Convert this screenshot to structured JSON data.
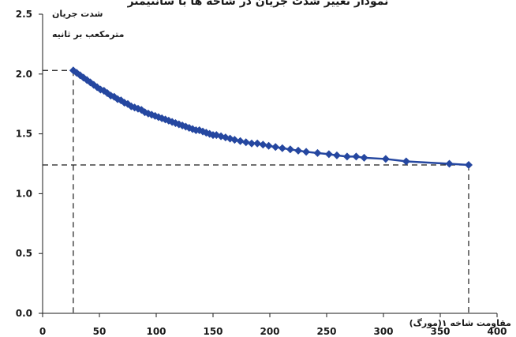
{
  "top_caption_fragment": "نمودار تغییر شدت جریان در شاخه ها با سانتیمتر",
  "chart_data": {
    "type": "line",
    "ylabel": "شدت جریان",
    "ylabel_unit": "مترمکعب بر ثانیه",
    "xlabel": "مقاومت شاخه ۱(مورگ)",
    "xlim": [
      0,
      400
    ],
    "ylim": [
      0,
      2.5
    ],
    "x_ticks": [
      "0",
      "50",
      "100",
      "150",
      "200",
      "250",
      "300",
      "350",
      "400"
    ],
    "y_ticks": [
      "0.0",
      "0.5",
      "1.0",
      "1.5",
      "2.0",
      "2.5"
    ],
    "x_tick_values": [
      0,
      50,
      100,
      150,
      200,
      250,
      300,
      350,
      400
    ],
    "y_tick_values": [
      0,
      0.5,
      1.0,
      1.5,
      2.0,
      2.5
    ],
    "grid": false,
    "marker": "diamond",
    "color": "#2547a0",
    "reference_lines": [
      {
        "x": 27,
        "y": 2.03
      },
      {
        "x": 375,
        "y": 1.24
      }
    ],
    "series": [
      {
        "x": [
          27,
          30,
          33,
          36,
          39,
          42,
          45,
          48,
          51,
          54,
          57,
          60,
          63,
          66,
          69,
          72,
          75,
          78,
          81,
          84,
          87,
          90,
          93,
          96,
          99,
          102,
          105,
          108,
          111,
          114,
          117,
          120,
          123,
          126,
          129,
          132,
          135,
          138,
          141,
          144,
          147,
          150,
          153,
          157,
          161,
          165,
          169,
          174,
          179,
          184,
          189,
          194,
          199,
          205,
          211,
          218,
          225,
          232,
          242,
          252,
          259,
          268,
          276,
          283,
          302,
          320,
          358,
          375
        ],
        "y": [
          2.03,
          2.01,
          1.99,
          1.97,
          1.95,
          1.93,
          1.91,
          1.89,
          1.87,
          1.86,
          1.84,
          1.82,
          1.81,
          1.79,
          1.78,
          1.76,
          1.75,
          1.73,
          1.72,
          1.71,
          1.7,
          1.68,
          1.67,
          1.66,
          1.65,
          1.64,
          1.63,
          1.62,
          1.61,
          1.6,
          1.59,
          1.58,
          1.57,
          1.56,
          1.55,
          1.54,
          1.53,
          1.53,
          1.52,
          1.51,
          1.5,
          1.49,
          1.49,
          1.48,
          1.47,
          1.46,
          1.45,
          1.44,
          1.43,
          1.42,
          1.42,
          1.41,
          1.4,
          1.39,
          1.38,
          1.37,
          1.36,
          1.35,
          1.34,
          1.33,
          1.32,
          1.31,
          1.31,
          1.3,
          1.29,
          1.27,
          1.25,
          1.24
        ]
      }
    ]
  }
}
